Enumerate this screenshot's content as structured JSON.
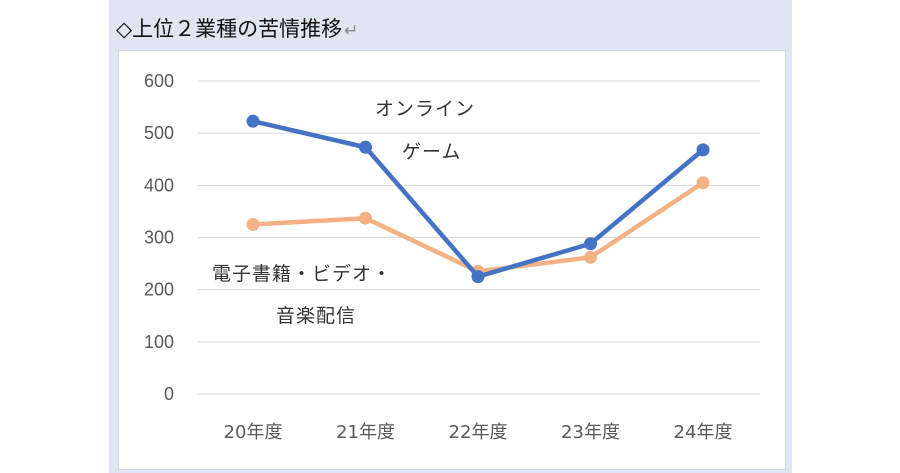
{
  "heading": {
    "title": "◇上位２業種の苦情推移",
    "return_mark": "↵"
  },
  "colors": {
    "online_game": "#4472c4",
    "ebook_video": "#f4b183",
    "gridline": "#d9d9d9",
    "page_background": "#dfe6f1"
  },
  "chart_data": {
    "type": "line",
    "title": "",
    "xlabel": "",
    "ylabel": "",
    "categories": [
      "20年度",
      "21年度",
      "22年度",
      "23年度",
      "24年度"
    ],
    "ylim": [
      0,
      600
    ],
    "yticks": [
      "0",
      "100",
      "200",
      "300",
      "400",
      "500",
      "600"
    ],
    "grid": true,
    "legend": "none",
    "series": [
      {
        "label_lines": [
          "オンライン",
          "ゲーム"
        ],
        "color": "#4472c4",
        "values": [
          523,
          473,
          225,
          288,
          468
        ]
      },
      {
        "label_lines": [
          "電子書籍・ビデオ・",
          "音楽配信"
        ],
        "color": "#f4b183",
        "values": [
          325,
          337,
          235,
          262,
          405
        ]
      }
    ]
  }
}
